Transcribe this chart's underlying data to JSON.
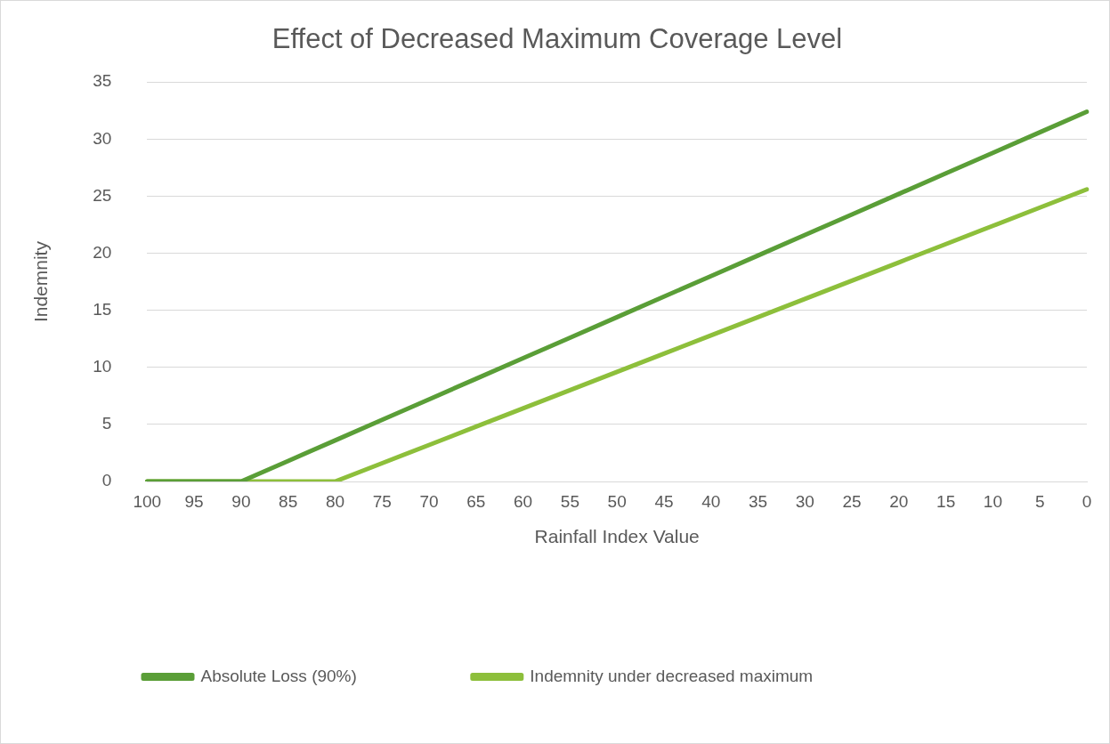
{
  "chart_data": {
    "type": "line",
    "title": "Effect of Decreased Maximum Coverage Level",
    "xlabel": "Rainfall Index Value",
    "ylabel": "Indemnity",
    "categories": [
      "100",
      "95",
      "90",
      "85",
      "80",
      "75",
      "70",
      "65",
      "60",
      "55",
      "50",
      "45",
      "40",
      "35",
      "30",
      "25",
      "20",
      "15",
      "10",
      "5",
      "0"
    ],
    "series": [
      {
        "name": "Absolute Loss (90%)",
        "color": "#5a9e37",
        "values": [
          0,
          0,
          0,
          1.8,
          3.6,
          5.4,
          7.2,
          9,
          10.8,
          12.6,
          14.4,
          16.2,
          18,
          19.8,
          21.6,
          23.4,
          25.2,
          27,
          28.8,
          30.6,
          32.4
        ]
      },
      {
        "name": "Indemnity under decreased maximum",
        "color": "#8dbf3b",
        "values": [
          0,
          0,
          0,
          0,
          0,
          1.6,
          3.2,
          4.8,
          6.4,
          8,
          9.6,
          11.2,
          12.8,
          14.4,
          16,
          17.6,
          19.2,
          20.8,
          22.4,
          24,
          25.6
        ]
      }
    ],
    "ylim": [
      0,
      35
    ],
    "yticks": [
      0,
      5,
      10,
      15,
      20,
      25,
      30,
      35
    ],
    "grid": "y",
    "legend": "bottom",
    "marker": "none",
    "line_style": "solid"
  }
}
